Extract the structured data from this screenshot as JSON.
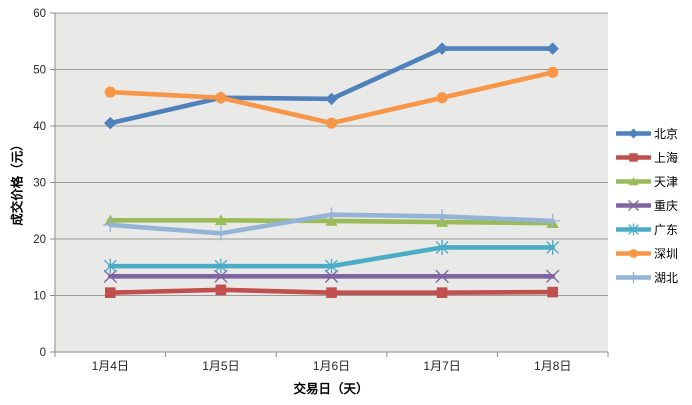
{
  "chart_data": {
    "type": "line",
    "xlabel": "交易日（天）",
    "ylabel": "成交价格（元）",
    "categories": [
      "1月4日",
      "1月5日",
      "1月6日",
      "1月7日",
      "1月8日"
    ],
    "series": [
      {
        "name": "北京",
        "color": "#4F81BD",
        "marker": "diamond",
        "values": [
          40.5,
          45.0,
          44.8,
          53.7,
          53.7
        ]
      },
      {
        "name": "上海",
        "color": "#C0504D",
        "marker": "square",
        "values": [
          10.5,
          11.0,
          10.5,
          10.5,
          10.6
        ]
      },
      {
        "name": "天津",
        "color": "#9BBB59",
        "marker": "triangle",
        "values": [
          23.3,
          23.3,
          23.2,
          23.0,
          22.8
        ]
      },
      {
        "name": "重庆",
        "color": "#8064A2",
        "marker": "x",
        "values": [
          13.4,
          13.4,
          13.4,
          13.4,
          13.4
        ]
      },
      {
        "name": "广东",
        "color": "#4BACC6",
        "marker": "asterisk",
        "values": [
          15.2,
          15.2,
          15.2,
          18.5,
          18.5
        ]
      },
      {
        "name": "深圳",
        "color": "#F79646",
        "marker": "circle",
        "values": [
          46.0,
          45.0,
          40.5,
          45.0,
          49.5
        ]
      },
      {
        "name": "湖北",
        "color": "#95B3D7",
        "marker": "plus",
        "values": [
          22.5,
          21.0,
          24.3,
          24.0,
          23.2
        ]
      }
    ],
    "ylim": [
      0,
      60
    ],
    "yticks": [
      0,
      10,
      20,
      30,
      40,
      50,
      60
    ],
    "grid": true,
    "legend_position": "right",
    "colors": {
      "plot_bg": "#E9E9E7",
      "gridline": "#9B9B9B",
      "axis": "#8C8C8C",
      "tick_label": "#262626",
      "page_bg": "#FFFFFF"
    }
  }
}
